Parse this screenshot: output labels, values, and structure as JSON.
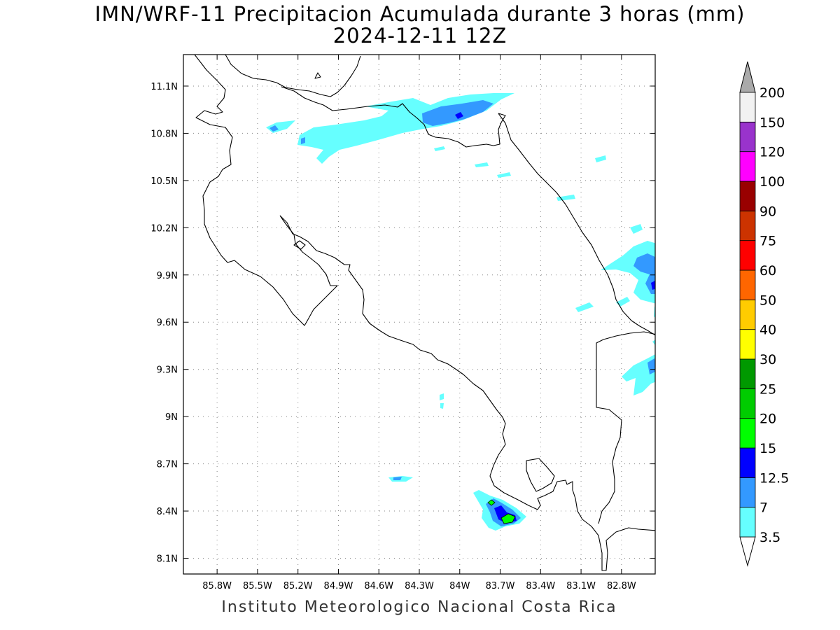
{
  "title": "IMN/WRF-11 Precipitacion Acumulada durante 3 horas (mm)",
  "subtitle": "2024-12-11 12Z",
  "credit": "Instituto Meteorologico Nacional Costa Rica",
  "map": {
    "region": "Costa Rica",
    "lon_range": [
      -86.05,
      -82.55
    ],
    "lat_range": [
      8.0,
      11.3
    ],
    "lon_ticks": [
      "85.8W",
      "85.5W",
      "85.2W",
      "84.9W",
      "84.6W",
      "84.3W",
      "84W",
      "83.7W",
      "83.4W",
      "83.1W",
      "82.8W"
    ],
    "lat_ticks": [
      "11.1N",
      "10.8N",
      "10.5N",
      "10.2N",
      "9.9N",
      "9.6N",
      "9.3N",
      "9N",
      "8.7N",
      "8.4N",
      "8.1N"
    ],
    "grid": true,
    "precipitation_areas": [
      {
        "region": "north border near 84W-83.6W, 10.9N",
        "max_class": "15"
      },
      {
        "region": "north plains 85.4W-84.2W, 10.75N",
        "max_class": "7"
      },
      {
        "region": "Caribbean coast 82.6W, 9.9N",
        "max_class": "15"
      },
      {
        "region": "Caribbean coast 82.6W, 9.3N",
        "max_class": "7"
      },
      {
        "region": "Osa peninsula 83.6W, 8.4N",
        "max_class": "20"
      },
      {
        "region": "84.4W, 8.6N",
        "max_class": "7"
      }
    ]
  },
  "colorbar": {
    "labels": [
      "3.5",
      "7",
      "12.5",
      "15",
      "20",
      "25",
      "30",
      "40",
      "50",
      "60",
      "75",
      "90",
      "100",
      "120",
      "150",
      "200"
    ],
    "colors": [
      "#ffffff",
      "#66ffff",
      "#3399ff",
      "#0000ff",
      "#00ff00",
      "#00cc00",
      "#009900",
      "#ffff00",
      "#ffcc00",
      "#ff6600",
      "#ff0000",
      "#cc3300",
      "#990000",
      "#ff00ff",
      "#9933cc",
      "#f2f2f2",
      "#aaaaaa"
    ]
  },
  "colors": {
    "light_cyan": "#66ffff",
    "blue": "#3399ff",
    "dark_blue": "#0000ff",
    "green": "#00ff00",
    "coastline": "#000000"
  }
}
